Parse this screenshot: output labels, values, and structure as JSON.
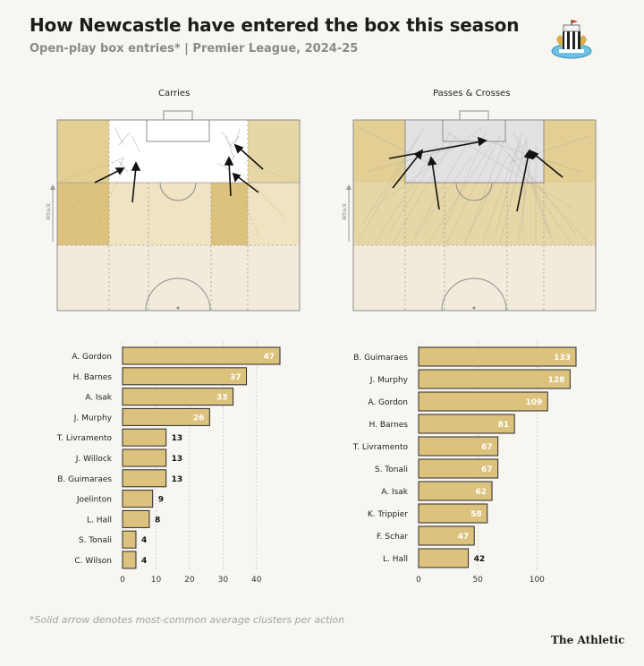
{
  "header": {
    "title": "How Newcastle have entered the box this season",
    "subtitle": "Open-play box entries* | Premier League, 2024-25"
  },
  "pitches": {
    "left_title": "Carries",
    "right_title": "Passes & Crosses",
    "attack_label": "Attack"
  },
  "footer": {
    "footnote": "*Solid arrow denotes most-common average clusters per action",
    "brand": "The Athletic"
  },
  "colors": {
    "bar_fill": "#dcc27c",
    "bar_stroke": "#2b2b2b",
    "zone_strong": "#dcc27c",
    "zone_mid": "#e8d7a6",
    "zone_light": "#efe3c2",
    "box_fill": "#ffffff",
    "label_in_bar": "#ffffff",
    "crest_badge": "#6ec1e4"
  },
  "chart_data": [
    {
      "type": "bar",
      "orientation": "horizontal",
      "title": "Carries",
      "categories": [
        "A. Gordon",
        "H. Barnes",
        "A. Isak",
        "J. Murphy",
        "T. Livramento",
        "J. Willock",
        "B. Guimaraes",
        "Joelinton",
        "L. Hall",
        "S. Tonali",
        "C. Wilson"
      ],
      "values": [
        47,
        37,
        33,
        26,
        13,
        13,
        13,
        9,
        8,
        4,
        4
      ],
      "xlim": [
        0,
        47
      ],
      "xticks": [
        0,
        10,
        20,
        30,
        40
      ]
    },
    {
      "type": "bar",
      "orientation": "horizontal",
      "title": "Passes & Crosses",
      "categories": [
        "B. Guimaraes",
        "J. Murphy",
        "A. Gordon",
        "H. Barnes",
        "T. Livramento",
        "S. Tonali",
        "A. Isak",
        "K. Trippier",
        "F. Schar",
        "L. Hall"
      ],
      "values": [
        133,
        128,
        109,
        81,
        67,
        67,
        62,
        58,
        47,
        42
      ],
      "xlim": [
        0,
        133
      ],
      "xticks": [
        0,
        50,
        100
      ]
    }
  ]
}
